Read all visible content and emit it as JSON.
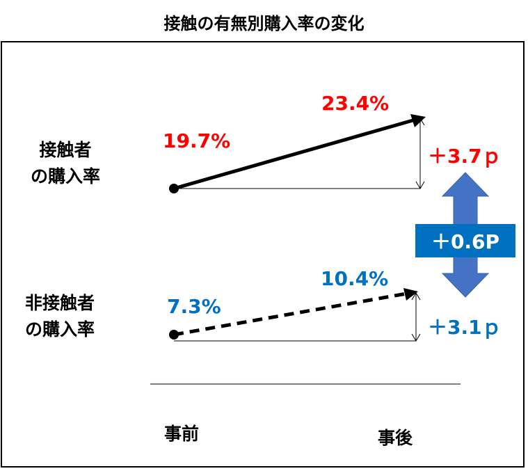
{
  "title": "接触の有無別購入率の変化",
  "rows": [
    {
      "label_line1": "接触者",
      "label_line2": "の購入率",
      "before": "19.7%",
      "after": "23.4%",
      "change": "＋3.7ｐ",
      "color": "#ff0000",
      "line_style": "solid"
    },
    {
      "label_line1": "非接触者",
      "label_line2": "の購入率",
      "before": "7.3%",
      "after": "10.4%",
      "change": "＋3.1ｐ",
      "color": "#0070c0",
      "line_style": "dashed"
    }
  ],
  "difference_badge": "＋0.6P",
  "axis": {
    "before_label": "事前",
    "after_label": "事後"
  },
  "colors": {
    "accent_red": "#ff0000",
    "accent_blue": "#0070c0",
    "arrow_fill": "#4472c4"
  }
}
